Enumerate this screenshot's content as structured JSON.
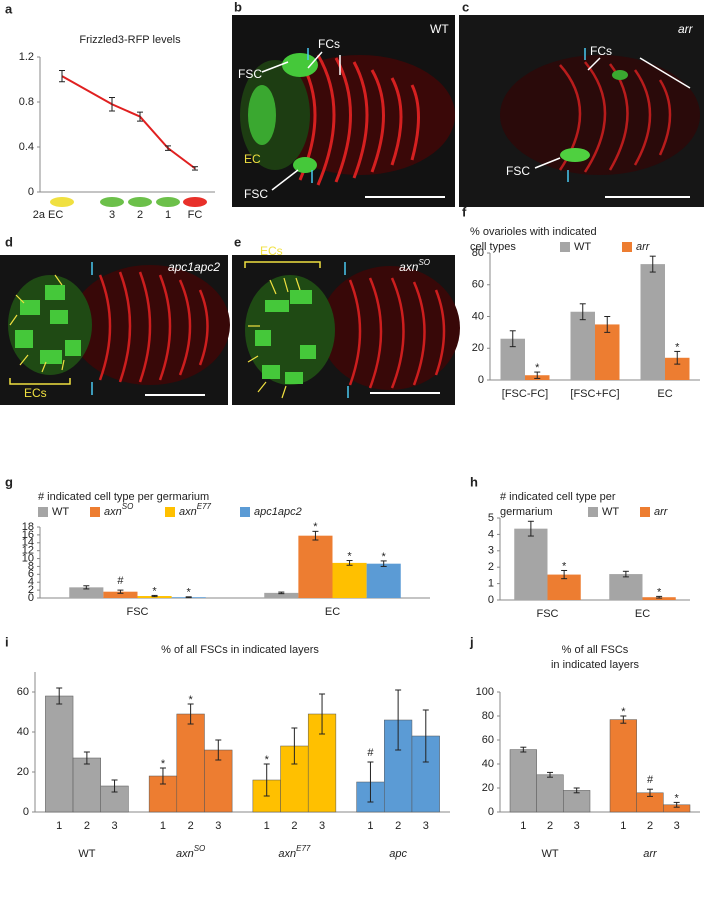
{
  "images": [
    {
      "panel": "b",
      "labels": [
        "WT",
        "FSC",
        "FCs",
        "EC",
        "FSC"
      ]
    },
    {
      "panel": "c",
      "labels": [
        "arr",
        "FCs",
        "FSC"
      ]
    },
    {
      "panel": "d",
      "labels": [
        "apc1apc2",
        "ECs"
      ]
    },
    {
      "panel": "e",
      "labels": [
        "axn",
        "SO",
        "ECs"
      ]
    }
  ],
  "chart_data": [
    {
      "panel": "a",
      "type": "line",
      "title": "Frizzled3-RFP levels",
      "categories": [
        "2a EC",
        "3",
        "2",
        "1",
        "FC"
      ],
      "marker_colors": [
        "#f0e040",
        "#6cc04a",
        "#6cc04a",
        "#6cc04a",
        "#e8302a"
      ],
      "values": [
        1.03,
        0.78,
        0.67,
        0.39,
        0.21
      ],
      "errors": [
        0.05,
        0.06,
        0.04,
        0.02,
        0.015
      ],
      "color": "#e02020",
      "ylim": [
        0,
        1.2
      ],
      "yticks": [
        0,
        0.4,
        0.8,
        1.2
      ]
    },
    {
      "panel": "f",
      "type": "bar",
      "title": [
        "% ovarioles with indicated",
        "cell types"
      ],
      "categories": [
        "[FSC-FC]",
        "[FSC+FC]",
        "EC"
      ],
      "series": [
        {
          "name": "WT",
          "color": "#a5a5a5",
          "values": [
            26,
            43,
            73
          ],
          "errors": [
            5,
            5,
            5
          ]
        },
        {
          "name": "arr",
          "italic": true,
          "color": "#ed7d31",
          "values": [
            3,
            35,
            14
          ],
          "errors": [
            2,
            5,
            4
          ],
          "markers": [
            "*",
            null,
            "*"
          ]
        }
      ],
      "ylim": [
        0,
        80
      ],
      "yticks": [
        0,
        20,
        40,
        60,
        80
      ]
    },
    {
      "panel": "g",
      "type": "bar",
      "title": [
        "# indicated cell type per germarium"
      ],
      "categories": [
        "FSC",
        "EC"
      ],
      "series": [
        {
          "name": "WT",
          "color": "#a5a5a5",
          "values": [
            2.7,
            1.3
          ],
          "errors": [
            0.4,
            0.2
          ]
        },
        {
          "name": "axn",
          "sup": "SO",
          "italic": true,
          "color": "#ed7d31",
          "values": [
            1.6,
            15.8
          ],
          "errors": [
            0.4,
            1.1
          ],
          "markers": [
            "#",
            "*"
          ]
        },
        {
          "name": "axn",
          "sup": "E77",
          "italic": true,
          "color": "#ffc000",
          "values": [
            0.5,
            8.9
          ],
          "errors": [
            0.15,
            0.6
          ],
          "markers": [
            "*",
            "*"
          ]
        },
        {
          "name": "apc1apc2",
          "italic": true,
          "color": "#5b9bd5",
          "values": [
            0.2,
            8.7
          ],
          "errors": [
            0.1,
            0.7
          ],
          "markers": [
            "*",
            "*"
          ]
        }
      ],
      "ylim": [
        0,
        18
      ],
      "yticks": [
        0,
        2,
        4,
        6,
        8,
        10,
        12,
        14,
        16,
        18
      ]
    },
    {
      "panel": "h",
      "type": "bar",
      "title": [
        "# indicated cell type per",
        "germarium"
      ],
      "categories": [
        "FSC",
        "EC"
      ],
      "series": [
        {
          "name": "WT",
          "color": "#a5a5a5",
          "values": [
            4.35,
            1.58
          ],
          "errors": [
            0.45,
            0.17
          ]
        },
        {
          "name": "arr",
          "italic": true,
          "color": "#ed7d31",
          "values": [
            1.55,
            0.17
          ],
          "errors": [
            0.25,
            0.05
          ],
          "markers": [
            "*",
            "*"
          ]
        }
      ],
      "ylim": [
        0,
        5
      ],
      "yticks": [
        0,
        1,
        2,
        3,
        4,
        5
      ]
    },
    {
      "panel": "i",
      "type": "bar",
      "title": [
        "% of all FSCs in indicated layers"
      ],
      "subcategories": [
        "1",
        "2",
        "3"
      ],
      "groups": [
        {
          "name": "WT",
          "color": "#a5a5a5",
          "values": [
            58,
            27,
            13
          ],
          "errors": [
            4,
            3,
            3
          ]
        },
        {
          "name": "axn",
          "sup": "SO",
          "italic": true,
          "color": "#ed7d31",
          "values": [
            18,
            49,
            31
          ],
          "errors": [
            4,
            5,
            5
          ],
          "markers": [
            "*",
            "*",
            null
          ]
        },
        {
          "name": "axn",
          "sup": "E77",
          "italic": true,
          "color": "#ffc000",
          "values": [
            16,
            33,
            49
          ],
          "errors": [
            8,
            9,
            10
          ],
          "markers": [
            "*",
            null,
            null
          ]
        },
        {
          "name": "apc",
          "italic": true,
          "color": "#5b9bd5",
          "values": [
            15,
            46,
            38
          ],
          "errors": [
            10,
            15,
            13
          ],
          "markers": [
            "#",
            null,
            null
          ]
        }
      ],
      "ylim": [
        0,
        70
      ],
      "yticks": [
        0,
        20,
        40,
        60
      ]
    },
    {
      "panel": "j",
      "type": "bar",
      "title": [
        "% of all FSCs",
        "in indicated layers"
      ],
      "subcategories": [
        "1",
        "2",
        "3"
      ],
      "groups": [
        {
          "name": "WT",
          "color": "#a5a5a5",
          "values": [
            52,
            31,
            18
          ],
          "errors": [
            2,
            2,
            2
          ]
        },
        {
          "name": "arr",
          "italic": true,
          "color": "#ed7d31",
          "values": [
            77,
            16,
            6
          ],
          "errors": [
            3,
            3,
            2
          ],
          "markers": [
            "*",
            "#",
            "*"
          ]
        }
      ],
      "ylim": [
        0,
        100
      ],
      "yticks": [
        0,
        20,
        40,
        60,
        80,
        100
      ]
    }
  ]
}
